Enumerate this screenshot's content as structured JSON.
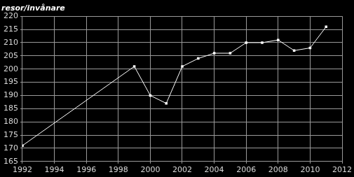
{
  "chart_data": {
    "type": "line",
    "y_label": "resor/invånare",
    "x": [
      1992,
      1999,
      2000,
      2001,
      2002,
      2003,
      2004,
      2005,
      2006,
      2007,
      2008,
      2009,
      2010,
      2011
    ],
    "values": [
      171,
      201,
      190,
      187,
      201,
      204,
      206,
      206,
      210,
      210,
      211,
      207,
      208,
      216
    ],
    "color": "#ffffff",
    "marker": "square",
    "line_style": "solid",
    "xlim": [
      1992,
      2012
    ],
    "xticks": [
      1992,
      1994,
      1996,
      1998,
      2000,
      2002,
      2004,
      2006,
      2008,
      2010,
      2012
    ],
    "ylim": [
      165,
      220
    ],
    "yticks": [
      165,
      170,
      175,
      180,
      185,
      190,
      195,
      200,
      205,
      210,
      215,
      220
    ],
    "grid": true
  }
}
